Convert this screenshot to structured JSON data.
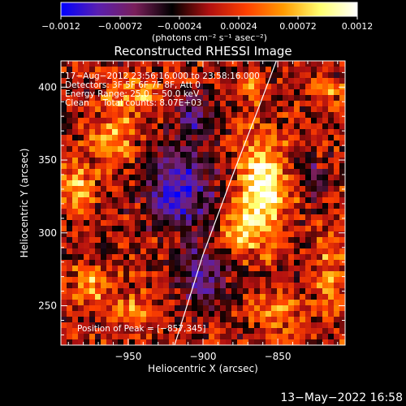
{
  "chart_data": {
    "type": "heatmap",
    "title": "Reconstructed RHESSI Image",
    "xlabel": "Heliocentric X (arcsec)",
    "ylabel": "Heliocentric Y (arcsec)",
    "xlim": [
      -995,
      -805
    ],
    "ylim": [
      223,
      418
    ],
    "xticks": [
      -950,
      -900,
      -850
    ],
    "xtick_labels": [
      "−950",
      "−900",
      "−850"
    ],
    "yticks": [
      250,
      300,
      350,
      400
    ],
    "ytick_labels": [
      "250",
      "300",
      "350",
      "400"
    ],
    "grid": false,
    "colorbar": {
      "range": [
        -0.0012,
        0.0012
      ],
      "ticks": [
        -0.0012,
        -0.00072,
        -0.00024,
        0.00024,
        0.00072,
        0.0012
      ],
      "tick_labels": [
        "−0.0012",
        "−0.00072",
        "−0.00024",
        "0.00024",
        "0.00072",
        "0.0012"
      ],
      "units_label": "(photons cm⁻² s⁻¹ asec⁻²)",
      "placement": "top",
      "colors": [
        "#0000ff",
        "#5a1fb0",
        "#7a1f5a",
        "#000000",
        "#b01010",
        "#ff4000",
        "#ff9a00",
        "#ffff70",
        "#ffffff"
      ]
    },
    "annotations": [
      "17−Aug−2012 23:56:16.000 to 23:58:16.000",
      "Detectors: 3F 5F 6F 7F 8F, Att 0",
      "Energy Range: 25.0 − 50.0 keV",
      "Clean     Total counts: 8.07E+03"
    ],
    "peak_label": "Position of Peak = [−857,345]",
    "peak": {
      "x": -857,
      "y": 345
    },
    "limb_curve": {
      "x": [
        -919,
        -900,
        -880,
        -862,
        -851
      ],
      "y": [
        223,
        285,
        340,
        388,
        418
      ]
    },
    "sources": [
      {
        "x": -860,
        "y": 330,
        "rx": 16,
        "ry": 32,
        "amp": 1.0
      },
      {
        "x": -875,
        "y": 300,
        "rx": 12,
        "ry": 14,
        "amp": 0.55
      },
      {
        "x": -960,
        "y": 365,
        "rx": 14,
        "ry": 20,
        "amp": 0.55
      },
      {
        "x": -985,
        "y": 330,
        "rx": 12,
        "ry": 18,
        "amp": 0.6
      },
      {
        "x": -945,
        "y": 395,
        "rx": 18,
        "ry": 12,
        "amp": 0.45
      },
      {
        "x": -975,
        "y": 265,
        "rx": 14,
        "ry": 14,
        "amp": 0.5
      },
      {
        "x": -945,
        "y": 245,
        "rx": 12,
        "ry": 10,
        "amp": 0.5
      },
      {
        "x": -920,
        "y": 300,
        "rx": 10,
        "ry": 10,
        "amp": 0.35
      },
      {
        "x": -850,
        "y": 245,
        "rx": 16,
        "ry": 14,
        "amp": 0.45
      },
      {
        "x": -815,
        "y": 270,
        "rx": 10,
        "ry": 30,
        "amp": 0.4
      },
      {
        "x": -865,
        "y": 400,
        "rx": 10,
        "ry": 10,
        "amp": 0.35
      },
      {
        "x": -815,
        "y": 395,
        "rx": 10,
        "ry": 10,
        "amp": 0.35
      }
    ],
    "negative_regions": [
      {
        "x": -915,
        "y": 330,
        "rx": 22,
        "ry": 30,
        "amp": 0.85
      },
      {
        "x": -900,
        "y": 270,
        "rx": 16,
        "ry": 20,
        "amp": 0.6
      },
      {
        "x": -905,
        "y": 380,
        "rx": 12,
        "ry": 14,
        "amp": 0.5
      },
      {
        "x": -830,
        "y": 340,
        "rx": 10,
        "ry": 14,
        "amp": 0.45
      }
    ]
  },
  "footer": {
    "timestamp": "13−May−2022 16:58"
  }
}
